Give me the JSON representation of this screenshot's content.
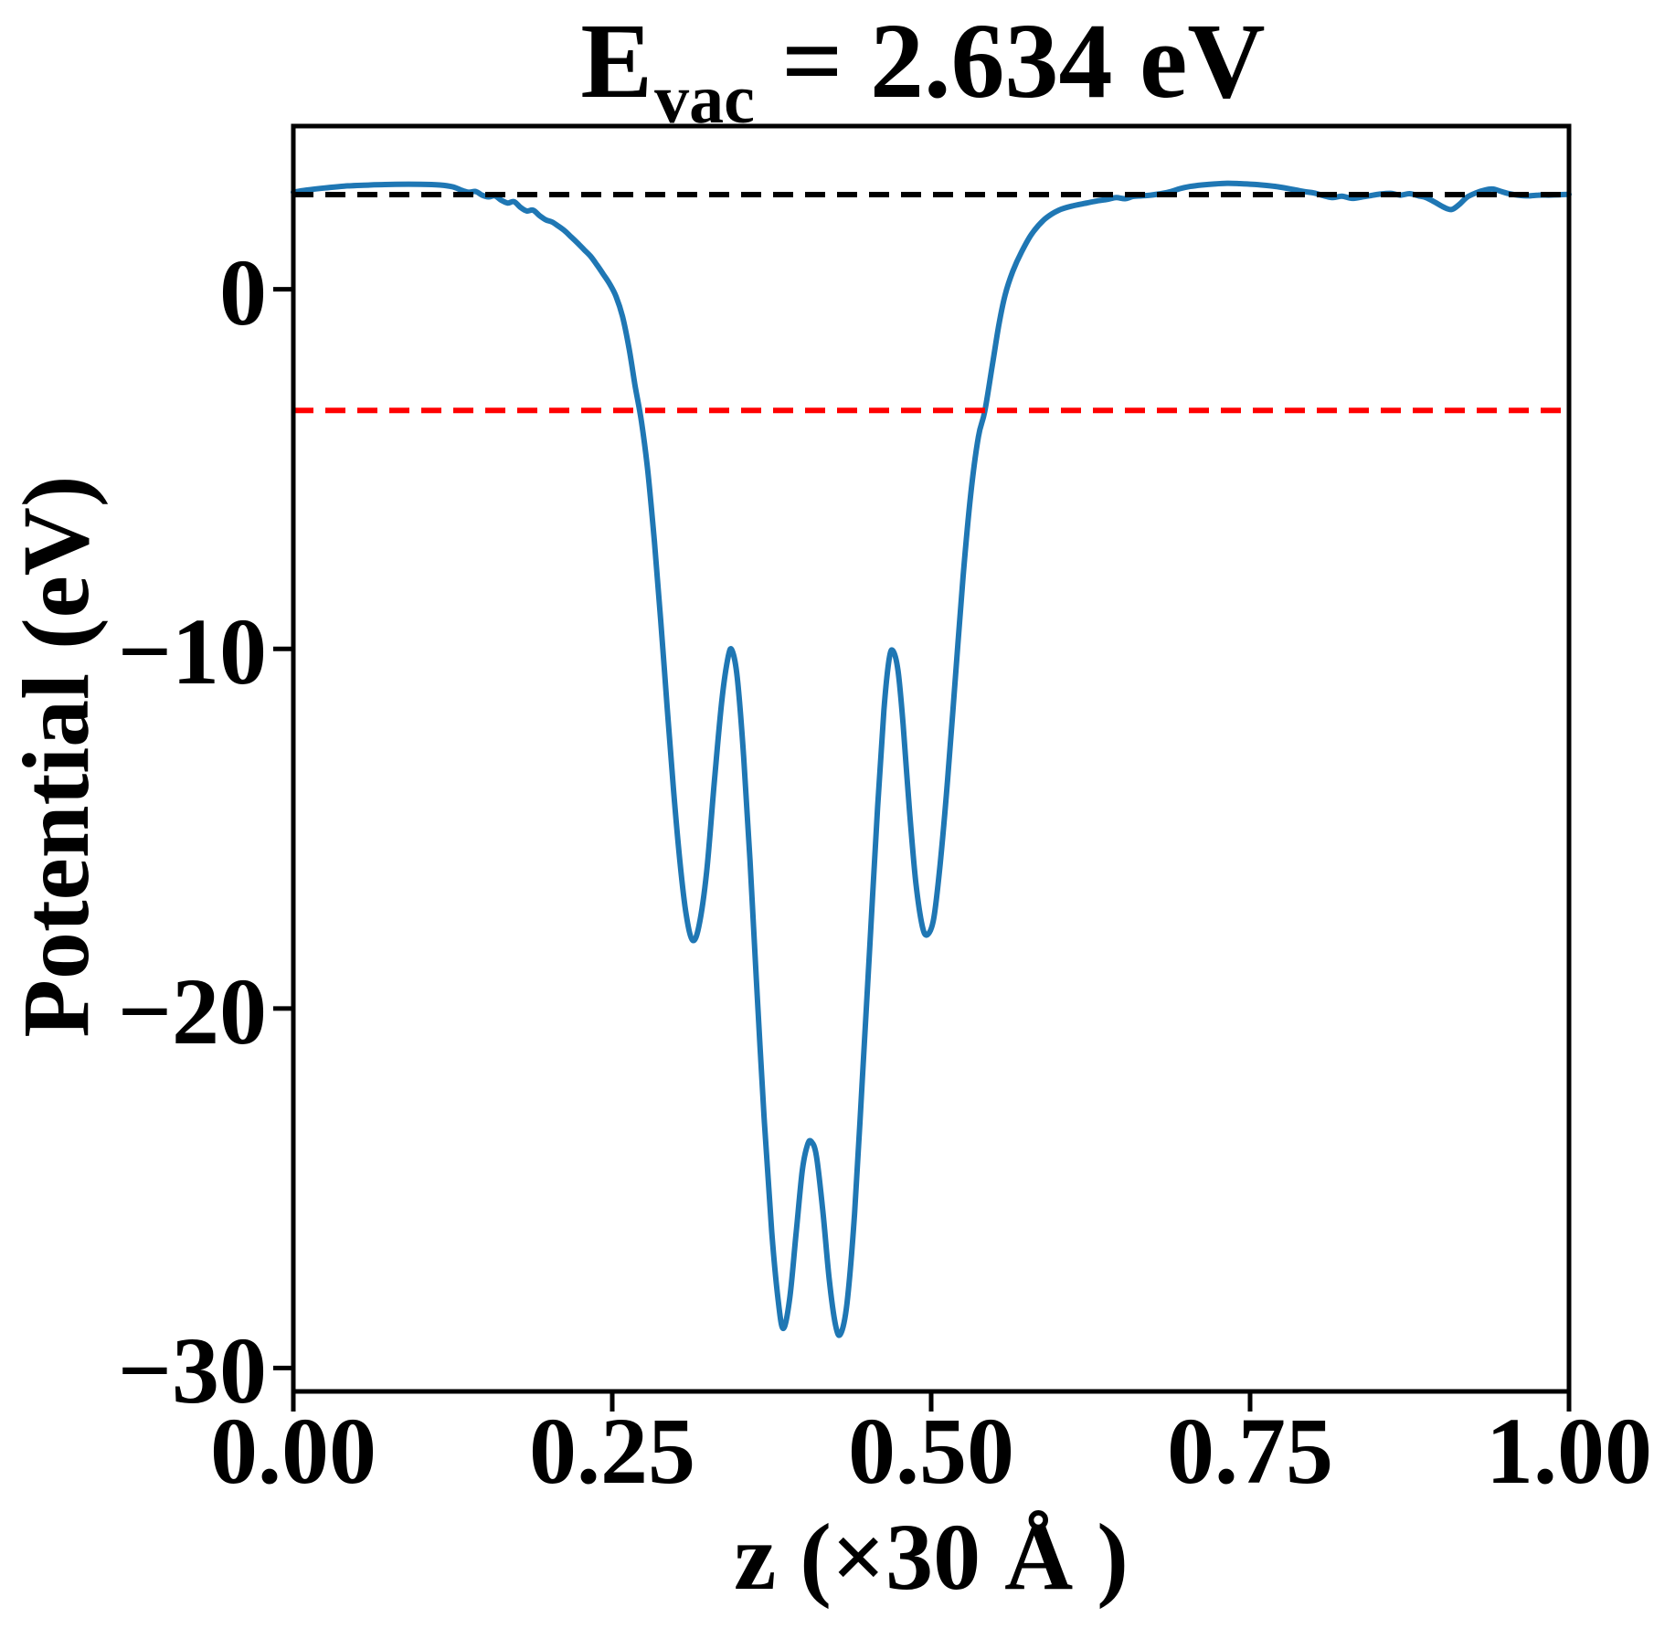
{
  "figure": {
    "background": "#ffffff"
  },
  "chart_data": {
    "type": "line",
    "title": {
      "base": "E",
      "subscript": "vac",
      "rest": " = 2.634 eV",
      "text": "E_vac = 2.634 eV"
    },
    "xlabel": "z (×30 Å )",
    "ylabel": "Potential (eV)",
    "xlim": [
      0,
      1
    ],
    "ylim": [
      -30.65,
      4.54
    ],
    "grid": false,
    "legend_position": "none",
    "xticks": [
      {
        "value": 0.0,
        "label": "0.00"
      },
      {
        "value": 0.25,
        "label": "0.25"
      },
      {
        "value": 0.5,
        "label": "0.50"
      },
      {
        "value": 0.75,
        "label": "0.75"
      },
      {
        "value": 1.0,
        "label": "1.00"
      }
    ],
    "yticks": [
      {
        "value": 0,
        "label": "0"
      },
      {
        "value": -10,
        "label": "−10"
      },
      {
        "value": -20,
        "label": "−20"
      },
      {
        "value": -30,
        "label": "−30"
      }
    ],
    "hlines": [
      {
        "name": "black-dashed-hline",
        "value": 2.634,
        "color": "#000000",
        "style": "dashed"
      },
      {
        "name": "red-dashed-hline",
        "value": -3.37,
        "color": "#ff0000",
        "style": "dashed"
      }
    ],
    "series": [
      {
        "name": "planar-averaged-potential",
        "color": "#1f77b4",
        "points": [
          [
            0,
            2.7
          ],
          [
            0.01,
            2.76
          ],
          [
            0.025,
            2.82
          ],
          [
            0.04,
            2.87
          ],
          [
            0.06,
            2.9
          ],
          [
            0.08,
            2.92
          ],
          [
            0.1,
            2.92
          ],
          [
            0.115,
            2.9
          ],
          [
            0.125,
            2.85
          ],
          [
            0.133,
            2.74
          ],
          [
            0.138,
            2.7
          ],
          [
            0.143,
            2.72
          ],
          [
            0.148,
            2.62
          ],
          [
            0.153,
            2.57
          ],
          [
            0.158,
            2.6
          ],
          [
            0.163,
            2.48
          ],
          [
            0.168,
            2.4
          ],
          [
            0.173,
            2.44
          ],
          [
            0.178,
            2.28
          ],
          [
            0.183,
            2.18
          ],
          [
            0.188,
            2.2
          ],
          [
            0.193,
            2.05
          ],
          [
            0.198,
            1.93
          ],
          [
            0.203,
            1.87
          ],
          [
            0.208,
            1.75
          ],
          [
            0.213,
            1.62
          ],
          [
            0.218,
            1.45
          ],
          [
            0.223,
            1.28
          ],
          [
            0.228,
            1.1
          ],
          [
            0.233,
            0.92
          ],
          [
            0.238,
            0.68
          ],
          [
            0.243,
            0.42
          ],
          [
            0.248,
            0.15
          ],
          [
            0.253,
            -0.2
          ],
          [
            0.258,
            -0.75
          ],
          [
            0.263,
            -1.6
          ],
          [
            0.268,
            -2.7
          ],
          [
            0.273,
            -3.7
          ],
          [
            0.278,
            -5.1
          ],
          [
            0.283,
            -7
          ],
          [
            0.288,
            -9.2
          ],
          [
            0.293,
            -11.6
          ],
          [
            0.298,
            -13.9
          ],
          [
            0.303,
            -15.9
          ],
          [
            0.308,
            -17.4
          ],
          [
            0.313,
            -18.1
          ],
          [
            0.318,
            -17.7
          ],
          [
            0.324,
            -16.2
          ],
          [
            0.33,
            -13.7
          ],
          [
            0.336,
            -11.4
          ],
          [
            0.341,
            -10.2
          ],
          [
            0.344,
            -10.05
          ],
          [
            0.348,
            -10.8
          ],
          [
            0.353,
            -13
          ],
          [
            0.358,
            -15.9
          ],
          [
            0.363,
            -19.2
          ],
          [
            0.369,
            -23
          ],
          [
            0.375,
            -26.2
          ],
          [
            0.38,
            -28.1
          ],
          [
            0.384,
            -28.9
          ],
          [
            0.389,
            -28.1
          ],
          [
            0.394,
            -26.3
          ],
          [
            0.399,
            -24.5
          ],
          [
            0.403,
            -23.8
          ],
          [
            0.406,
            -23.7
          ],
          [
            0.41,
            -24.1
          ],
          [
            0.415,
            -25.6
          ],
          [
            0.42,
            -27.5
          ],
          [
            0.425,
            -28.8
          ],
          [
            0.429,
            -29.05
          ],
          [
            0.434,
            -28.2
          ],
          [
            0.44,
            -25.7
          ],
          [
            0.446,
            -22
          ],
          [
            0.452,
            -18.2
          ],
          [
            0.458,
            -14.4
          ],
          [
            0.463,
            -11.7
          ],
          [
            0.467,
            -10.3
          ],
          [
            0.47,
            -10.05
          ],
          [
            0.474,
            -10.6
          ],
          [
            0.478,
            -12.1
          ],
          [
            0.483,
            -14.5
          ],
          [
            0.488,
            -16.5
          ],
          [
            0.493,
            -17.7
          ],
          [
            0.497,
            -17.95
          ],
          [
            0.502,
            -17.5
          ],
          [
            0.507,
            -16
          ],
          [
            0.513,
            -13.6
          ],
          [
            0.519,
            -10.8
          ],
          [
            0.525,
            -8
          ],
          [
            0.531,
            -5.7
          ],
          [
            0.537,
            -4.1
          ],
          [
            0.542,
            -3.4
          ],
          [
            0.548,
            -2.1
          ],
          [
            0.553,
            -1
          ],
          [
            0.558,
            -0.15
          ],
          [
            0.564,
            0.5
          ],
          [
            0.571,
            1.05
          ],
          [
            0.579,
            1.55
          ],
          [
            0.589,
            1.95
          ],
          [
            0.6,
            2.2
          ],
          [
            0.612,
            2.33
          ],
          [
            0.622,
            2.4
          ],
          [
            0.63,
            2.46
          ],
          [
            0.638,
            2.5
          ],
          [
            0.645,
            2.55
          ],
          [
            0.652,
            2.52
          ],
          [
            0.658,
            2.58
          ],
          [
            0.665,
            2.6
          ],
          [
            0.672,
            2.62
          ],
          [
            0.68,
            2.66
          ],
          [
            0.688,
            2.72
          ],
          [
            0.695,
            2.8
          ],
          [
            0.703,
            2.86
          ],
          [
            0.712,
            2.9
          ],
          [
            0.722,
            2.93
          ],
          [
            0.732,
            2.95
          ],
          [
            0.742,
            2.94
          ],
          [
            0.752,
            2.92
          ],
          [
            0.762,
            2.89
          ],
          [
            0.772,
            2.85
          ],
          [
            0.782,
            2.79
          ],
          [
            0.792,
            2.72
          ],
          [
            0.8,
            2.68
          ],
          [
            0.808,
            2.6
          ],
          [
            0.815,
            2.55
          ],
          [
            0.822,
            2.59
          ],
          [
            0.83,
            2.53
          ],
          [
            0.838,
            2.57
          ],
          [
            0.845,
            2.61
          ],
          [
            0.852,
            2.65
          ],
          [
            0.86,
            2.67
          ],
          [
            0.868,
            2.62
          ],
          [
            0.875,
            2.66
          ],
          [
            0.882,
            2.6
          ],
          [
            0.888,
            2.55
          ],
          [
            0.895,
            2.42
          ],
          [
            0.902,
            2.28
          ],
          [
            0.908,
            2.22
          ],
          [
            0.914,
            2.36
          ],
          [
            0.92,
            2.56
          ],
          [
            0.927,
            2.68
          ],
          [
            0.934,
            2.76
          ],
          [
            0.94,
            2.79
          ],
          [
            0.947,
            2.72
          ],
          [
            0.953,
            2.66
          ],
          [
            0.96,
            2.62
          ],
          [
            0.968,
            2.6
          ],
          [
            0.976,
            2.62
          ],
          [
            0.984,
            2.62
          ],
          [
            0.992,
            2.63
          ],
          [
            1,
            2.64
          ]
        ]
      }
    ]
  }
}
